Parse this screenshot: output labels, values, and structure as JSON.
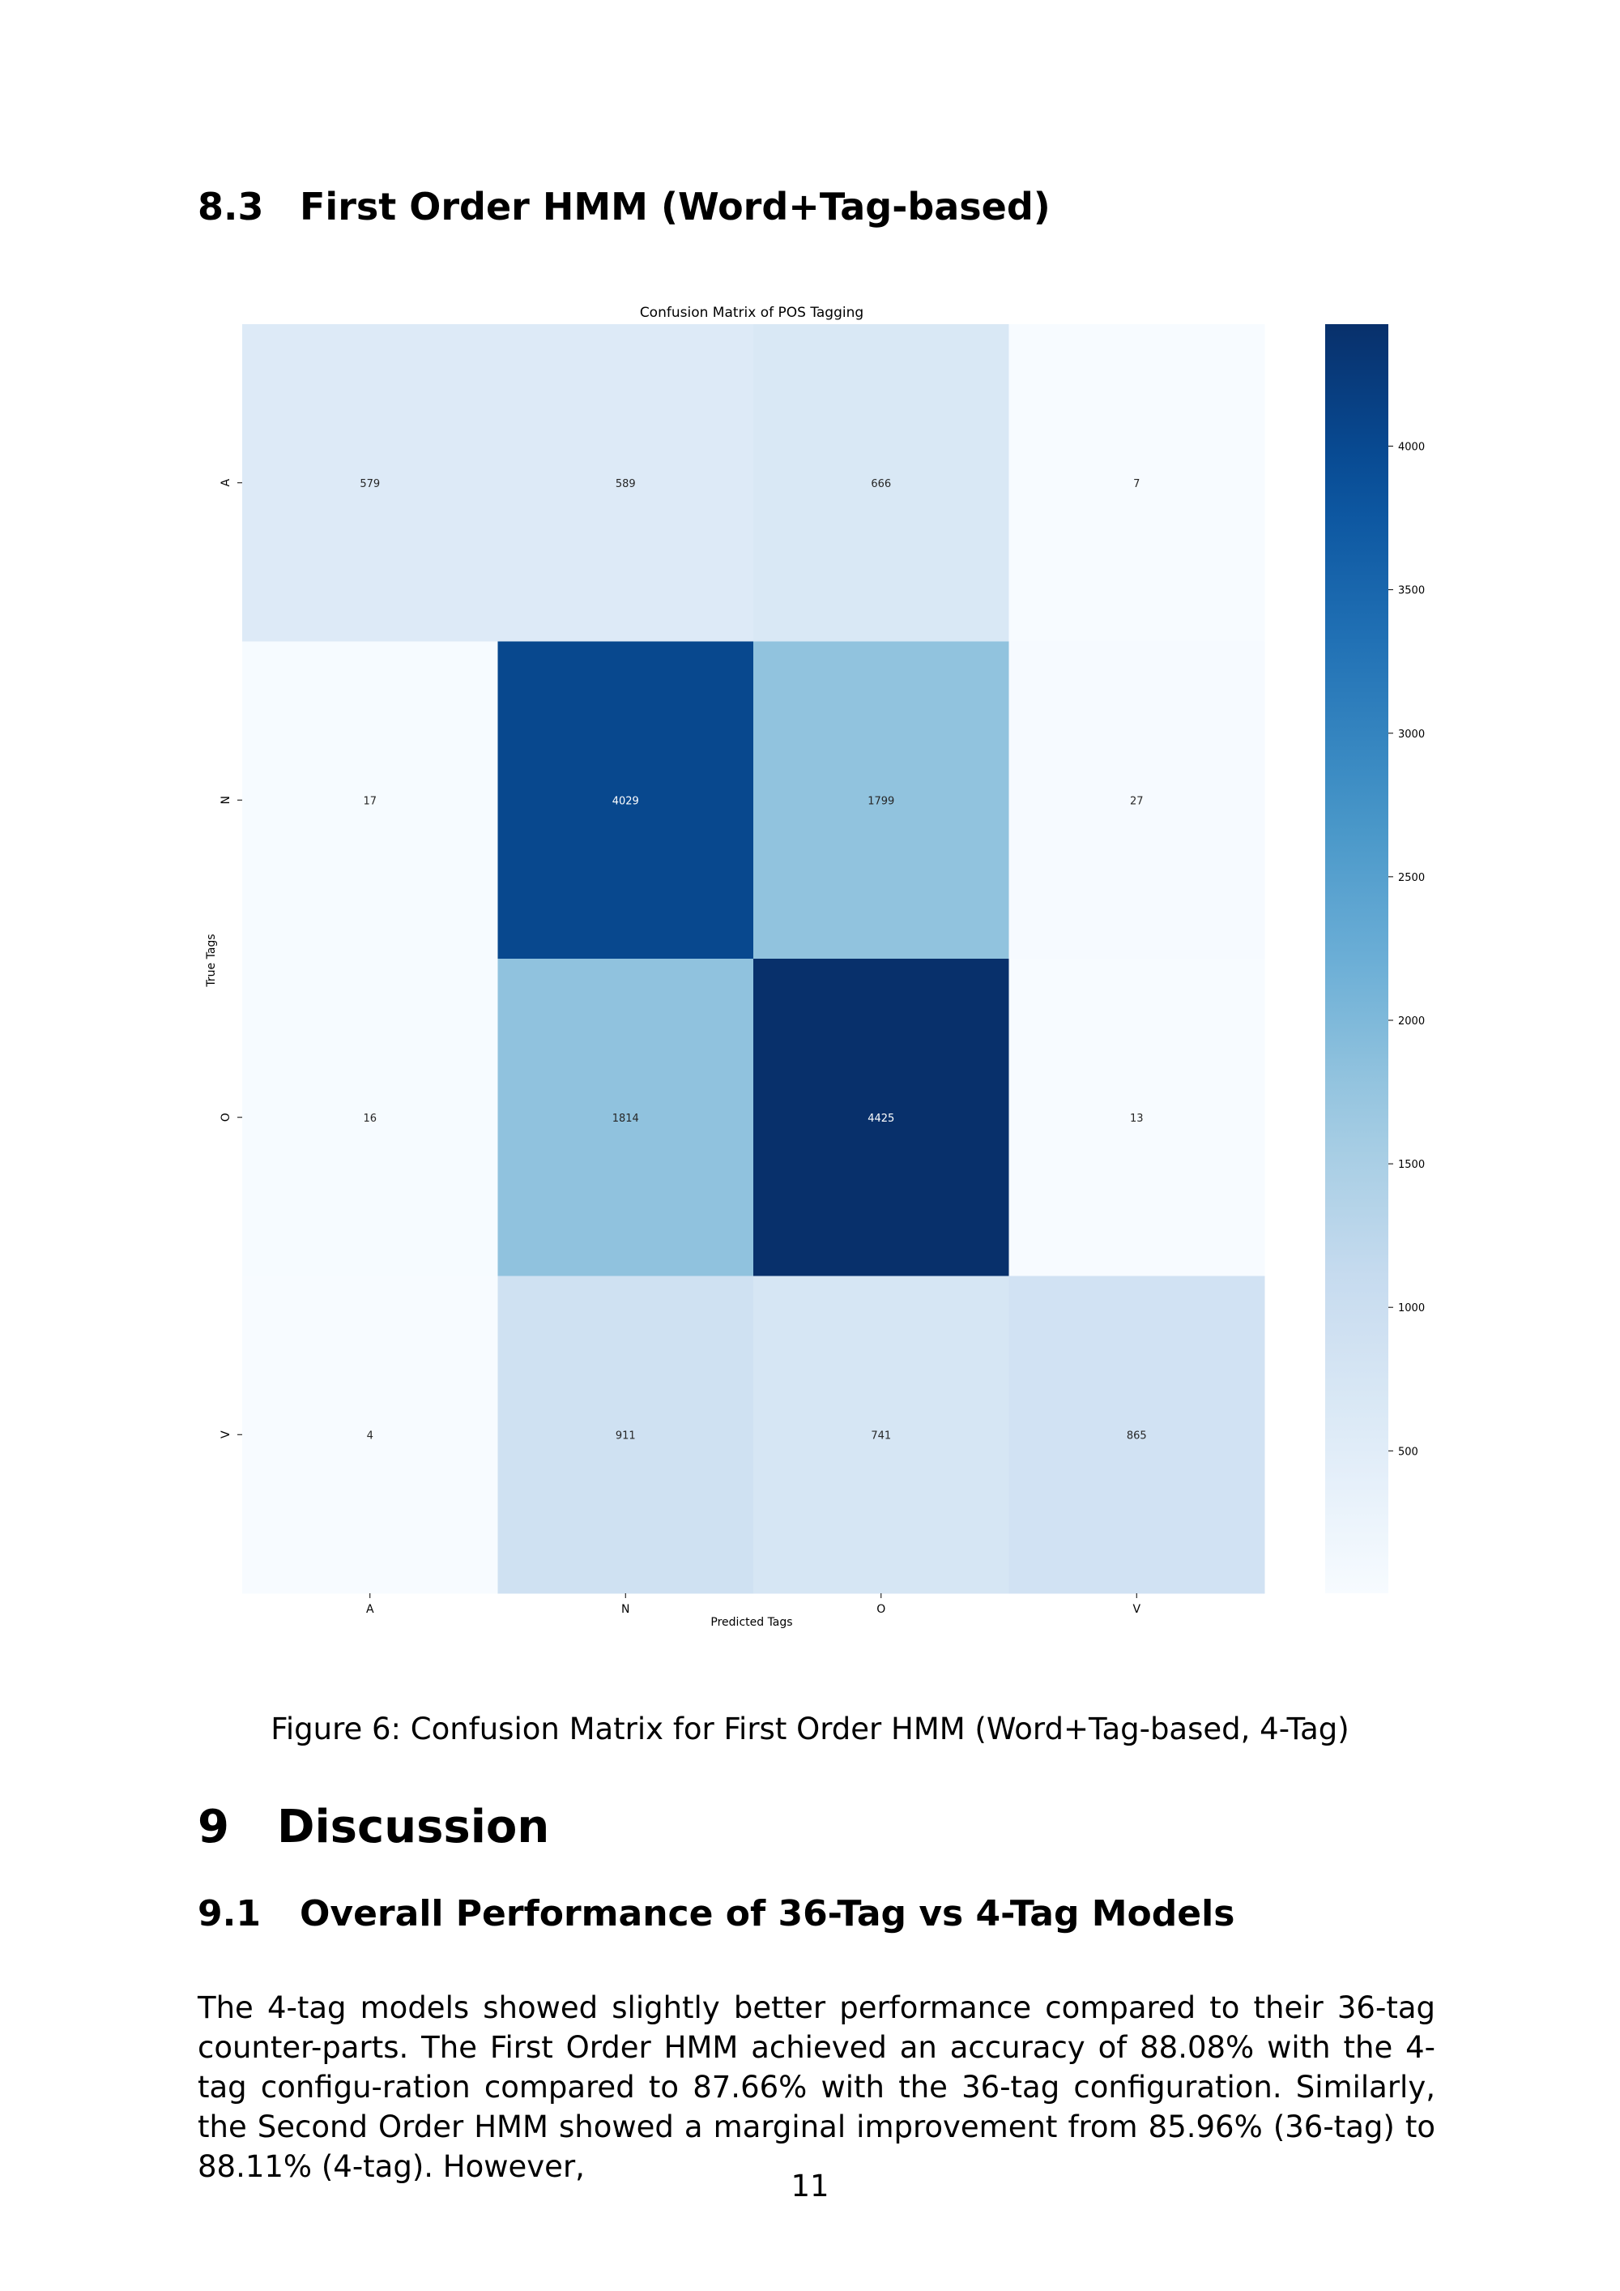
{
  "section_8_3": {
    "number": "8.3",
    "title": "First Order HMM (Word+Tag-based)"
  },
  "figure": {
    "caption": "Figure 6: Confusion Matrix for First Order HMM (Word+Tag-based, 4-Tag)"
  },
  "chart_data": {
    "type": "heatmap",
    "title": "Confusion Matrix of POS Tagging",
    "xlabel": "Predicted Tags",
    "ylabel": "True Tags",
    "x_categories": [
      "A",
      "N",
      "O",
      "V"
    ],
    "y_categories": [
      "A",
      "N",
      "O",
      "V"
    ],
    "values": [
      [
        579,
        589,
        666,
        7
      ],
      [
        17,
        4029,
        1799,
        27
      ],
      [
        16,
        1814,
        4425,
        13
      ],
      [
        4,
        911,
        741,
        865
      ]
    ],
    "colormap": "Blues",
    "color_range": [
      4,
      4425
    ],
    "colorbar_ticks": [
      500,
      1000,
      1500,
      2000,
      2500,
      3000,
      3500,
      4000
    ],
    "cell_annotations": true
  },
  "section_9": {
    "number": "9",
    "title": "Discussion"
  },
  "section_9_1": {
    "number": "9.1",
    "title": "Overall Performance of 36-Tag vs 4-Tag Models"
  },
  "paragraph": "The 4-tag models showed slightly better performance compared to their 36-tag counter-parts. The First Order HMM achieved an accuracy of 88.08% with the 4-tag configu-ration compared to 87.66% with the 36-tag configuration. Similarly, the Second Order HMM showed a marginal improvement from 85.96% (36-tag) to 88.11% (4-tag). However,",
  "page_number": "11"
}
